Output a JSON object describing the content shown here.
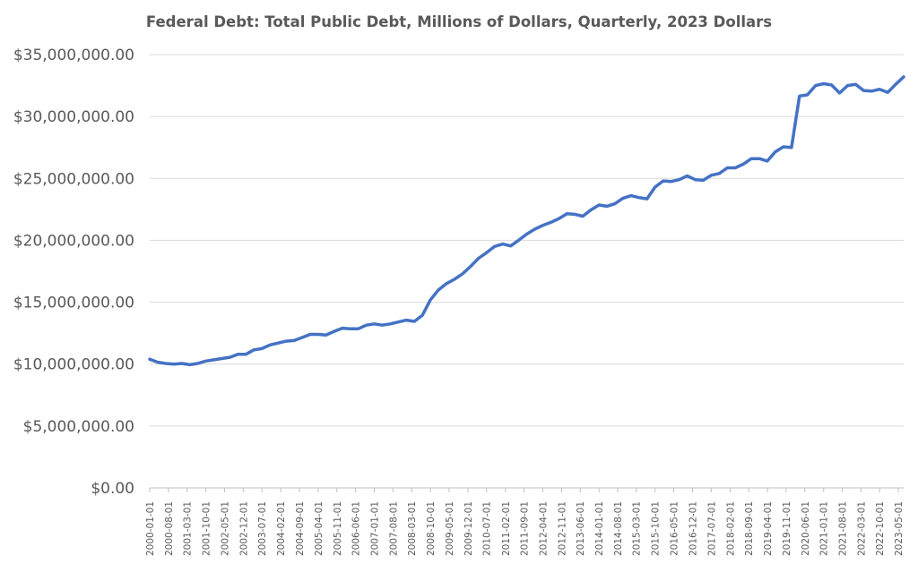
{
  "chart_data": {
    "type": "line",
    "title": "Federal Debt: Total Public Debt, Millions of Dollars, Quarterly, 2023 Dollars",
    "xlabel": "",
    "ylabel": "",
    "ylim": [
      0,
      35000000
    ],
    "y_ticks": [
      "$0.00",
      "$5,000,000.00",
      "$10,000,000.00",
      "$15,000,000.00",
      "$20,000,000.00",
      "$25,000,000.00",
      "$30,000,000.00",
      "$35,000,000.00"
    ],
    "x_tick_labels": [
      "2000-01-01",
      "2000-08-01",
      "2001-03-01",
      "2001-10-01",
      "2002-05-01",
      "2002-12-01",
      "2003-07-01",
      "2004-02-01",
      "2004-09-01",
      "2005-04-01",
      "2005-11-01",
      "2006-06-01",
      "2007-01-01",
      "2007-08-01",
      "2008-03-01",
      "2008-10-01",
      "2009-05-01",
      "2009-12-01",
      "2010-07-01",
      "2011-02-01",
      "2011-09-01",
      "2012-04-01",
      "2012-11-01",
      "2013-06-01",
      "2014-01-01",
      "2014-08-01",
      "2015-03-01",
      "2015-10-01",
      "2016-05-01",
      "2016-12-01",
      "2017-07-01",
      "2018-02-01",
      "2018-09-01",
      "2019-04-01",
      "2019-11-01",
      "2020-06-01",
      "2021-01-01",
      "2021-08-01",
      "2022-03-01",
      "2022-10-01",
      "2023-05-01"
    ],
    "grid": true,
    "legend": "none",
    "colors": {
      "series": "#4472c4"
    },
    "series": [
      {
        "x": [
          "2000-01-01",
          "2000-04-01",
          "2000-07-01",
          "2000-10-01",
          "2001-01-01",
          "2001-04-01",
          "2001-07-01",
          "2001-10-01",
          "2002-01-01",
          "2002-04-01",
          "2002-07-01",
          "2002-10-01",
          "2003-01-01",
          "2003-04-01",
          "2003-07-01",
          "2003-10-01",
          "2004-01-01",
          "2004-04-01",
          "2004-07-01",
          "2004-10-01",
          "2005-01-01",
          "2005-04-01",
          "2005-07-01",
          "2005-10-01",
          "2006-01-01",
          "2006-04-01",
          "2006-07-01",
          "2006-10-01",
          "2007-01-01",
          "2007-04-01",
          "2007-07-01",
          "2007-10-01",
          "2008-01-01",
          "2008-04-01",
          "2008-07-01",
          "2008-10-01",
          "2009-01-01",
          "2009-04-01",
          "2009-07-01",
          "2009-10-01",
          "2010-01-01",
          "2010-04-01",
          "2010-07-01",
          "2010-10-01",
          "2011-01-01",
          "2011-04-01",
          "2011-07-01",
          "2011-10-01",
          "2012-01-01",
          "2012-04-01",
          "2012-07-01",
          "2012-10-01",
          "2013-01-01",
          "2013-04-01",
          "2013-07-01",
          "2013-10-01",
          "2014-01-01",
          "2014-04-01",
          "2014-07-01",
          "2014-10-01",
          "2015-01-01",
          "2015-04-01",
          "2015-07-01",
          "2015-10-01",
          "2016-01-01",
          "2016-04-01",
          "2016-07-01",
          "2016-10-01",
          "2017-01-01",
          "2017-04-01",
          "2017-07-01",
          "2017-10-01",
          "2018-01-01",
          "2018-04-01",
          "2018-07-01",
          "2018-10-01",
          "2019-01-01",
          "2019-04-01",
          "2019-07-01",
          "2019-10-01",
          "2020-01-01",
          "2020-04-01",
          "2020-07-01",
          "2020-10-01",
          "2021-01-01",
          "2021-04-01",
          "2021-07-01",
          "2021-10-01",
          "2022-01-01",
          "2022-04-01",
          "2022-07-01",
          "2022-10-01",
          "2023-01-01",
          "2023-04-01",
          "2023-07-01"
        ],
        "values": [
          10400000,
          10150000,
          10050000,
          10000000,
          10050000,
          9950000,
          10050000,
          10250000,
          10350000,
          10450000,
          10550000,
          10800000,
          10800000,
          11150000,
          11250000,
          11550000,
          11700000,
          11850000,
          11900000,
          12150000,
          12400000,
          12400000,
          12350000,
          12650000,
          12900000,
          12850000,
          12850000,
          13150000,
          13250000,
          13150000,
          13250000,
          13400000,
          13550000,
          13450000,
          13950000,
          15200000,
          16000000,
          16500000,
          16850000,
          17300000,
          17900000,
          18550000,
          19000000,
          19500000,
          19700000,
          19550000,
          20000000,
          20500000,
          20900000,
          21200000,
          21450000,
          21750000,
          22150000,
          22100000,
          21950000,
          22450000,
          22850000,
          22750000,
          22950000,
          23400000,
          23600000,
          23450000,
          23350000,
          24300000,
          24800000,
          24750000,
          24900000,
          25200000,
          24900000,
          24850000,
          25250000,
          25400000,
          25850000,
          25850000,
          26150000,
          26600000,
          26600000,
          26400000,
          27150000,
          27550000,
          27500000,
          31650000,
          31750000,
          32500000,
          32650000,
          32550000,
          31900000,
          32500000,
          32600000,
          32100000,
          32050000,
          32200000,
          31950000,
          32600000,
          33200000
        ]
      }
    ]
  }
}
